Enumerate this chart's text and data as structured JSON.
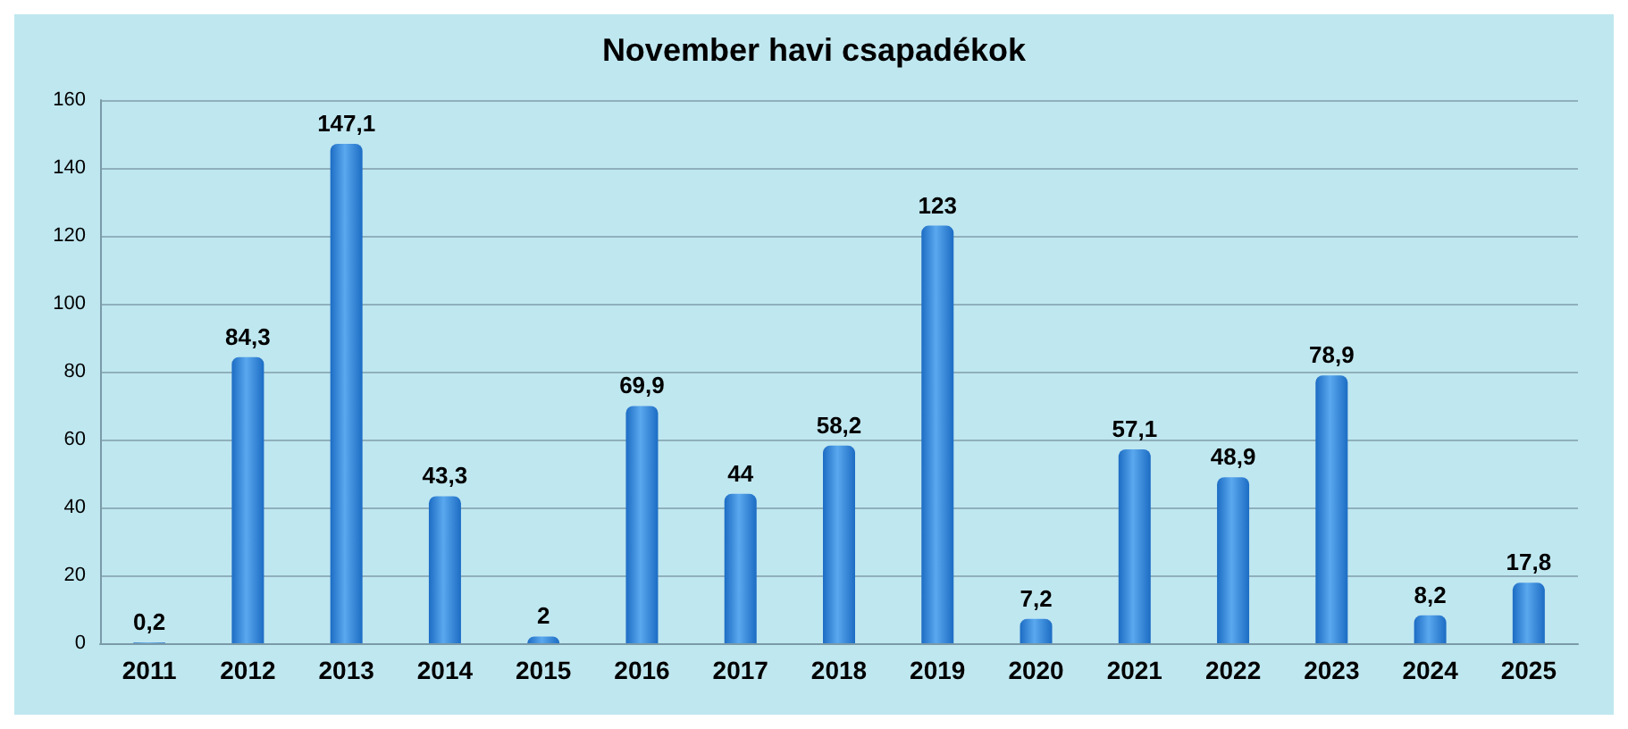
{
  "chart_data": {
    "type": "bar",
    "title": "November havi csapadékok",
    "categories": [
      "2011",
      "2012",
      "2013",
      "2014",
      "2015",
      "2016",
      "2017",
      "2018",
      "2019",
      "2020",
      "2021",
      "2022",
      "2023",
      "2024",
      "2025"
    ],
    "values": [
      0.2,
      84.3,
      147.1,
      43.3,
      2,
      69.9,
      44,
      58.2,
      123,
      7.2,
      57.1,
      48.9,
      78.9,
      8.2,
      17.8
    ],
    "value_labels": [
      "0,2",
      "84,3",
      "147,1",
      "43,3",
      "2",
      "69,9",
      "44",
      "58,2",
      "123",
      "7,2",
      "57,1",
      "48,9",
      "78,9",
      "8,2",
      "17,8"
    ],
    "color": "#1c6cc4",
    "ylim": [
      0,
      160
    ],
    "yticks": [
      0,
      20,
      40,
      60,
      80,
      100,
      120,
      140,
      160
    ],
    "grid": "y"
  }
}
